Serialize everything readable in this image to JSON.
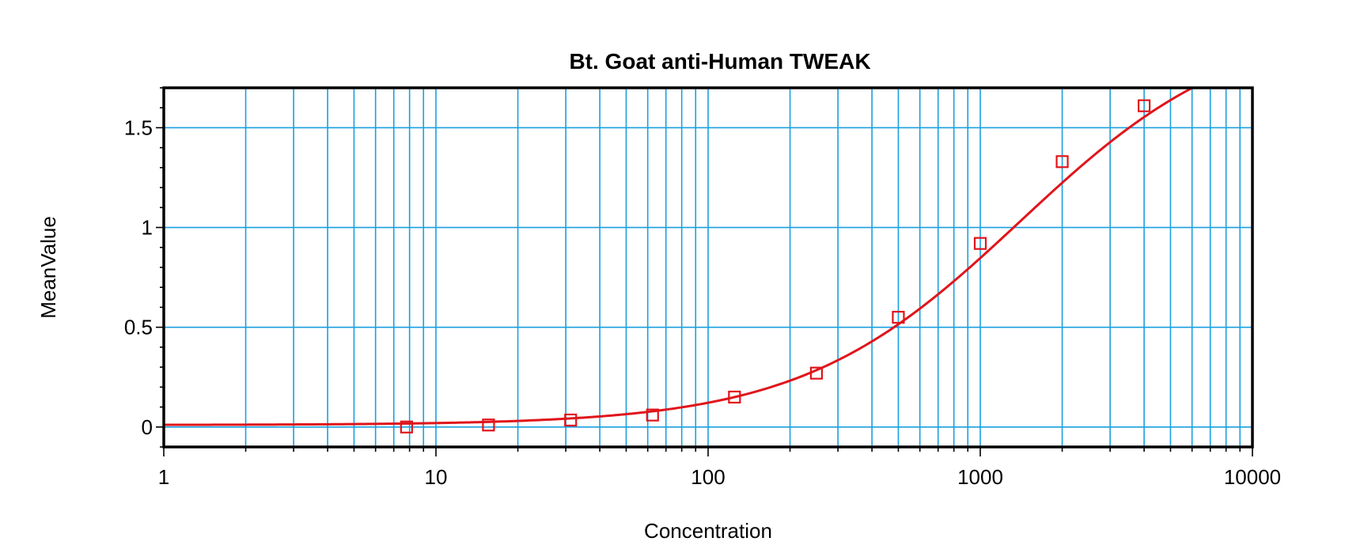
{
  "chart_data": {
    "type": "scatter",
    "title": "Bt. Goat anti-Human TWEAK",
    "xlabel": "Concentration",
    "ylabel": "MeanValue",
    "x_scale": "log",
    "xlim": [
      1,
      10000
    ],
    "ylim": [
      -0.1,
      1.7
    ],
    "x_ticks": [
      1,
      10,
      100,
      1000,
      10000
    ],
    "x_tick_labels": [
      "1",
      "10",
      "100",
      "1000",
      "10000"
    ],
    "y_ticks": [
      0,
      0.5,
      1,
      1.5
    ],
    "y_tick_labels": [
      "0",
      "0.5",
      "1",
      "1.5"
    ],
    "grid": true,
    "legend": "none",
    "series": [
      {
        "x": [
          7.8,
          15.6,
          31.25,
          62.5,
          125,
          250,
          500,
          1000,
          2000,
          4000
        ],
        "y": [
          0.0,
          0.01,
          0.035,
          0.06,
          0.15,
          0.27,
          0.55,
          0.92,
          1.33,
          1.61
        ],
        "marker": "square",
        "fit": "four-parameter logistic",
        "color": "#e0151b"
      }
    ]
  }
}
